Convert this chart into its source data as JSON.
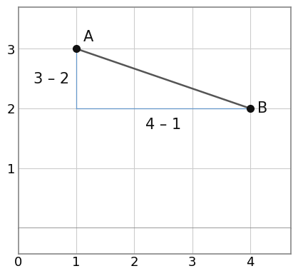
{
  "point_A": [
    1,
    3
  ],
  "point_B": [
    4,
    2
  ],
  "label_A": "A",
  "label_B": "B",
  "line_color": "#555555",
  "point_color": "#111111",
  "label_vertical": "3 – 2",
  "label_horizontal": "4 – 1",
  "triangle_color": "#6699cc",
  "xlim": [
    0,
    4.7
  ],
  "ylim": [
    0,
    3.7
  ],
  "xticklabels": [
    "0",
    "1",
    "2",
    "3",
    "4"
  ],
  "xtick_positions": [
    0,
    1,
    2,
    3,
    4
  ],
  "ytick_positions": [
    1,
    2,
    3
  ],
  "yticklabels": [
    "1",
    "2",
    "3"
  ],
  "grid_color": "#cccccc",
  "background_color": "#ffffff",
  "border_color": "#888888",
  "tick_fontsize": 13,
  "label_fontsize": 15,
  "point_size": 7,
  "line_width": 1.8,
  "triangle_lw": 0.9
}
